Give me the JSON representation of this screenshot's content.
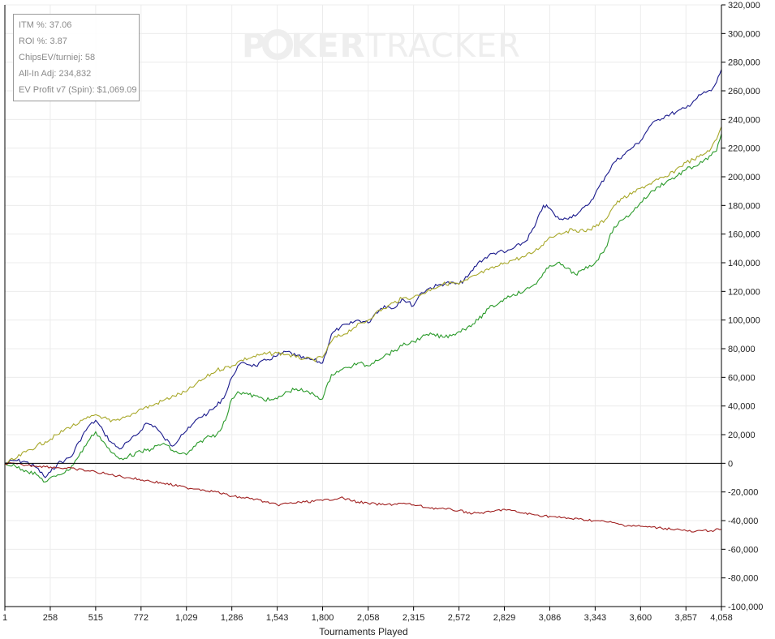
{
  "watermark": {
    "part1": "P",
    "part2": "KER",
    "part3": "TRACKER"
  },
  "stats": [
    "ITM %: 37.06",
    "ROI %: 3.87",
    "ChipsEV/turniej: 58",
    "All-In Adj: 234,832",
    "EV Profit v7 (Spin): $1,069.09"
  ],
  "chart_data": {
    "type": "line",
    "xlabel": "Tournaments Played",
    "ylabel": "",
    "xlim": [
      1,
      4058
    ],
    "ylim": [
      -100000,
      320000
    ],
    "x_ticks": [
      1,
      258,
      515,
      772,
      1029,
      1286,
      1543,
      1800,
      2058,
      2315,
      2572,
      2829,
      3086,
      3343,
      3600,
      3857,
      4058
    ],
    "x_tick_labels": [
      "1",
      "258",
      "515",
      "772",
      "1,029",
      "1,286",
      "1,543",
      "1,800",
      "2,058",
      "2,315",
      "2,572",
      "2,829",
      "3,086",
      "3,343",
      "3,600",
      "3,857",
      "4,058"
    ],
    "y_ticks": [
      320000,
      300000,
      280000,
      260000,
      240000,
      220000,
      200000,
      180000,
      160000,
      140000,
      120000,
      100000,
      80000,
      60000,
      40000,
      20000,
      0,
      -20000,
      -40000,
      -60000,
      -80000,
      -100000
    ],
    "y_tick_labels": [
      "320,000",
      "300,000",
      "280,000",
      "260,000",
      "240,000",
      "220,000",
      "200,000",
      "180,000",
      "160,000",
      "140,000",
      "120,000",
      "100,000",
      "80,000",
      "60,000",
      "40,000",
      "20,000",
      "0",
      "-20,000",
      "-40,000",
      "-60,000",
      "-80,000",
      "-100,000"
    ],
    "grid": true,
    "y_axis_position": "right",
    "series": [
      {
        "color": "#1a1a8c",
        "x": [
          1,
          60,
          120,
          180,
          230,
          260,
          300,
          340,
          380,
          420,
          470,
          515,
          560,
          600,
          650,
          700,
          750,
          800,
          850,
          900,
          950,
          1000,
          1050,
          1100,
          1150,
          1200,
          1250,
          1286,
          1320,
          1360,
          1420,
          1480,
          1543,
          1600,
          1650,
          1700,
          1750,
          1800,
          1850,
          1900,
          1950,
          2000,
          2058,
          2100,
          2150,
          2200,
          2250,
          2315,
          2350,
          2400,
          2450,
          2500,
          2572,
          2620,
          2680,
          2740,
          2800,
          2829,
          2880,
          2950,
          3000,
          3050,
          3086,
          3120,
          3160,
          3200,
          3250,
          3300,
          3343,
          3400,
          3450,
          3500,
          3550,
          3600,
          3650,
          3700,
          3750,
          3800,
          3857,
          3900,
          3950,
          4000,
          4030,
          4058
        ],
        "y": [
          0,
          2000,
          1000,
          -3000,
          -10000,
          -6000,
          0,
          2000,
          5000,
          15000,
          25000,
          30000,
          22000,
          15000,
          10000,
          15000,
          20000,
          28000,
          26000,
          18000,
          12000,
          20000,
          25000,
          32000,
          35000,
          40000,
          48000,
          60000,
          68000,
          70000,
          68000,
          72000,
          75000,
          78000,
          75000,
          73000,
          72000,
          70000,
          90000,
          95000,
          97000,
          100000,
          98000,
          105000,
          110000,
          108000,
          115000,
          110000,
          118000,
          122000,
          124000,
          126000,
          125000,
          130000,
          140000,
          145000,
          148000,
          147000,
          150000,
          155000,
          165000,
          180000,
          178000,
          172000,
          170000,
          172000,
          175000,
          180000,
          188000,
          200000,
          210000,
          215000,
          220000,
          225000,
          235000,
          240000,
          243000,
          245000,
          248000,
          253000,
          258000,
          260000,
          266000,
          275000
        ]
      },
      {
        "color": "#a8a82a",
        "x": [
          1,
          60,
          120,
          180,
          230,
          300,
          360,
          420,
          480,
          515,
          560,
          600,
          650,
          700,
          772,
          830,
          900,
          960,
          1029,
          1080,
          1140,
          1200,
          1286,
          1340,
          1400,
          1460,
          1543,
          1600,
          1650,
          1700,
          1750,
          1800,
          1860,
          1920,
          1980,
          2058,
          2100,
          2150,
          2200,
          2250,
          2315,
          2360,
          2420,
          2480,
          2540,
          2572,
          2620,
          2680,
          2740,
          2800,
          2829,
          2880,
          2940,
          3000,
          3040,
          3086,
          3130,
          3180,
          3230,
          3280,
          3343,
          3400,
          3450,
          3500,
          3550,
          3600,
          3650,
          3700,
          3750,
          3800,
          3857,
          3900,
          3950,
          4000,
          4030,
          4058
        ],
        "y": [
          0,
          3000,
          8000,
          12000,
          15000,
          20000,
          25000,
          28000,
          32000,
          34000,
          32000,
          29000,
          30000,
          33000,
          38000,
          40000,
          44000,
          47000,
          50000,
          55000,
          60000,
          65000,
          68000,
          72000,
          74000,
          76000,
          77000,
          76000,
          74000,
          73000,
          72000,
          74000,
          87000,
          90000,
          95000,
          100000,
          105000,
          108000,
          112000,
          115000,
          116000,
          118000,
          122000,
          125000,
          126000,
          125000,
          128000,
          132000,
          135000,
          138000,
          140000,
          142000,
          144000,
          148000,
          152000,
          158000,
          160000,
          162000,
          163000,
          162000,
          165000,
          170000,
          180000,
          185000,
          188000,
          192000,
          195000,
          198000,
          200000,
          205000,
          210000,
          212000,
          215000,
          220000,
          226000,
          235000
        ]
      },
      {
        "color": "#2a9a2a",
        "x": [
          1,
          60,
          120,
          180,
          230,
          300,
          360,
          420,
          470,
          515,
          560,
          600,
          650,
          700,
          772,
          830,
          900,
          960,
          1029,
          1080,
          1140,
          1200,
          1250,
          1286,
          1320,
          1380,
          1440,
          1500,
          1543,
          1600,
          1650,
          1700,
          1750,
          1800,
          1850,
          1900,
          1950,
          2000,
          2058,
          2100,
          2150,
          2200,
          2250,
          2315,
          2360,
          2420,
          2480,
          2540,
          2572,
          2620,
          2680,
          2740,
          2800,
          2829,
          2880,
          2940,
          3000,
          3040,
          3086,
          3130,
          3180,
          3230,
          3280,
          3343,
          3400,
          3450,
          3500,
          3550,
          3600,
          3650,
          3700,
          3750,
          3800,
          3857,
          3900,
          3950,
          4000,
          4030,
          4058
        ],
        "y": [
          0,
          -2000,
          -5000,
          -8000,
          -13000,
          -8000,
          -5000,
          5000,
          15000,
          22000,
          15000,
          8000,
          3000,
          5000,
          8000,
          10000,
          14000,
          8000,
          6000,
          12000,
          18000,
          20000,
          30000,
          45000,
          50000,
          48000,
          46000,
          44000,
          45000,
          50000,
          52000,
          50000,
          48000,
          45000,
          62000,
          65000,
          67000,
          70000,
          68000,
          72000,
          75000,
          78000,
          82000,
          85000,
          88000,
          90000,
          88000,
          90000,
          92000,
          95000,
          100000,
          108000,
          112000,
          115000,
          118000,
          120000,
          125000,
          130000,
          138000,
          140000,
          136000,
          132000,
          135000,
          140000,
          150000,
          165000,
          170000,
          175000,
          182000,
          188000,
          193000,
          197000,
          200000,
          205000,
          207000,
          210000,
          215000,
          218000,
          230000
        ]
      },
      {
        "color": "#a02020",
        "x": [
          1,
          100,
          200,
          300,
          400,
          515,
          600,
          700,
          800,
          900,
          1029,
          1100,
          1200,
          1286,
          1350,
          1420,
          1500,
          1543,
          1600,
          1700,
          1800,
          1900,
          2000,
          2058,
          2150,
          2250,
          2315,
          2400,
          2500,
          2572,
          2650,
          2750,
          2829,
          2900,
          3000,
          3086,
          3150,
          3250,
          3343,
          3420,
          3500,
          3600,
          3700,
          3800,
          3857,
          3900,
          3950,
          4000,
          4058
        ],
        "y": [
          0,
          -1000,
          -2000,
          -3000,
          -4000,
          -6000,
          -8000,
          -10000,
          -12000,
          -14000,
          -17000,
          -18000,
          -20000,
          -23000,
          -24000,
          -25000,
          -28000,
          -29000,
          -28000,
          -27000,
          -26000,
          -24000,
          -27000,
          -28000,
          -29000,
          -28000,
          -29000,
          -31000,
          -32000,
          -33000,
          -35000,
          -34000,
          -32000,
          -34000,
          -36000,
          -37000,
          -38000,
          -39000,
          -40000,
          -41000,
          -43000,
          -44000,
          -45000,
          -46000,
          -47000,
          -48000,
          -47000,
          -47000,
          -46000
        ]
      }
    ]
  }
}
